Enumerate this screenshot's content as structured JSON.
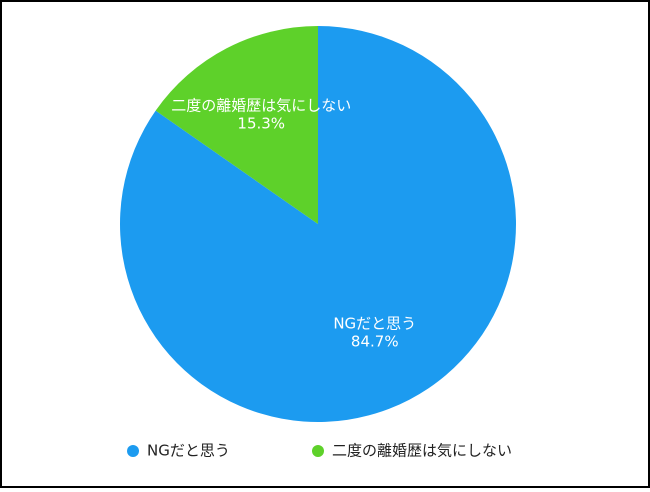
{
  "chart_data": {
    "type": "pie",
    "categories": [
      "NGだと思う",
      "二度の離婚歴は気にしない"
    ],
    "values": [
      84.7,
      15.3
    ],
    "value_labels": [
      "84.7%",
      "15.3%"
    ],
    "colors": [
      "#1c9bf0",
      "#5ed12a"
    ],
    "legend": "bottom"
  }
}
